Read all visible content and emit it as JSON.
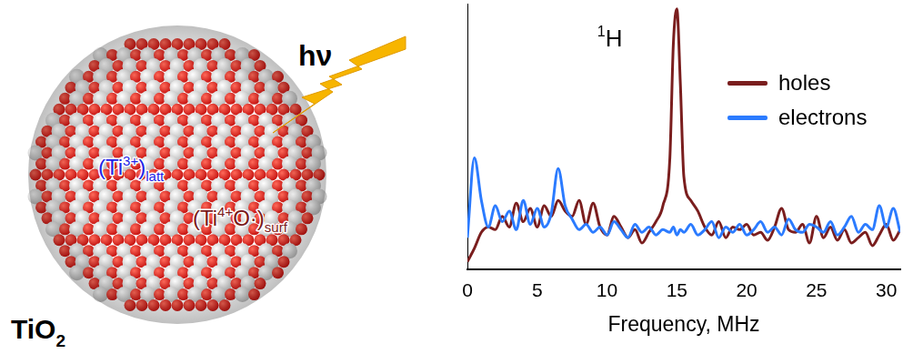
{
  "chart_data": {
    "type": "line",
    "x_label": "Frequency, MHz",
    "annotations": [
      {
        "parts": [
          {
            "text": "1",
            "style": "sup"
          },
          {
            "text": "H"
          }
        ],
        "x": 9.3,
        "y": 8.4
      }
    ],
    "x": [
      0,
      0.5,
      1,
      1.5,
      2,
      2.5,
      3,
      3.5,
      4,
      4.5,
      5,
      5.5,
      6,
      6.5,
      7,
      7.5,
      8,
      8.5,
      9,
      9.5,
      10,
      10.5,
      11,
      11.5,
      12,
      12.5,
      13,
      13.5,
      14,
      14.5,
      14.75,
      15,
      15.25,
      15.5,
      16,
      16.5,
      17,
      17.5,
      18,
      18.5,
      19,
      19.5,
      20,
      20.5,
      21,
      21.5,
      22,
      22.5,
      23,
      23.5,
      24,
      24.5,
      25,
      25.5,
      26,
      26.5,
      27,
      27.5,
      28,
      28.5,
      29,
      29.5,
      30,
      30.5,
      31
    ],
    "series": [
      {
        "name": "holes",
        "color": "#7a1e1e",
        "values": [
          0.3,
          0.8,
          1.4,
          1.6,
          1.5,
          2.0,
          1.6,
          2.5,
          1.8,
          2.3,
          1.6,
          2.4,
          2.0,
          2.6,
          2.2,
          2.0,
          2.6,
          1.7,
          2.5,
          1.6,
          1.3,
          2.0,
          1.6,
          1.2,
          1.5,
          1.0,
          1.4,
          1.8,
          2.4,
          4.2,
          8.5,
          9.8,
          7.0,
          3.5,
          2.6,
          2.2,
          1.6,
          1.3,
          1.8,
          1.2,
          1.6,
          1.5,
          1.7,
          1.3,
          1.4,
          1.1,
          1.6,
          2.3,
          1.5,
          1.4,
          1.7,
          1.0,
          2.0,
          1.2,
          1.6,
          1.1,
          1.5,
          1.0,
          1.2,
          1.4,
          0.9,
          1.3,
          1.7,
          1.1,
          1.5
        ]
      },
      {
        "name": "electrons",
        "color": "#2b7bff",
        "values": [
          1.2,
          4.2,
          2.6,
          1.6,
          2.4,
          1.8,
          2.2,
          1.5,
          2.6,
          1.7,
          2.3,
          1.6,
          2.1,
          3.8,
          2.4,
          1.9,
          1.5,
          1.7,
          1.4,
          1.6,
          1.3,
          1.8,
          1.5,
          1.2,
          1.7,
          1.4,
          1.6,
          1.3,
          1.5,
          1.4,
          1.6,
          1.3,
          1.5,
          1.4,
          1.7,
          1.3,
          1.5,
          1.8,
          1.2,
          1.6,
          1.4,
          1.7,
          1.3,
          1.5,
          1.8,
          1.4,
          1.6,
          1.3,
          1.9,
          1.5,
          1.4,
          1.7,
          1.6,
          1.4,
          1.8,
          1.3,
          1.6,
          2.0,
          1.4,
          1.7,
          1.5,
          2.4,
          1.6,
          2.3,
          1.4
        ]
      }
    ],
    "xlim": [
      0,
      31
    ],
    "xticks": [
      0,
      5,
      10,
      15,
      20,
      25,
      30
    ],
    "ylim": [
      0,
      10
    ],
    "yticks": [],
    "grid": false,
    "legend": "upper right",
    "tick_labels": "x"
  },
  "illustration": {
    "photon_label": {
      "parts": [
        {
          "text": "hν"
        }
      ],
      "color": "#000000"
    },
    "lattice_label": {
      "parts": [
        {
          "text": "(Ti"
        },
        {
          "text": "3+",
          "style": "sup"
        },
        {
          "text": ")"
        },
        {
          "text": "latt",
          "style": "sub"
        }
      ],
      "color": "#2323e6"
    },
    "surface_label": {
      "parts": [
        {
          "text": "(Ti"
        },
        {
          "text": "4+",
          "style": "sup"
        },
        {
          "text": "O·)"
        },
        {
          "text": "surf",
          "style": "sub"
        }
      ],
      "color": "#7b1a1a"
    },
    "particle_label": {
      "parts": [
        {
          "text": "TiO"
        },
        {
          "text": "2",
          "style": "sub"
        }
      ],
      "color": "#000000"
    }
  }
}
